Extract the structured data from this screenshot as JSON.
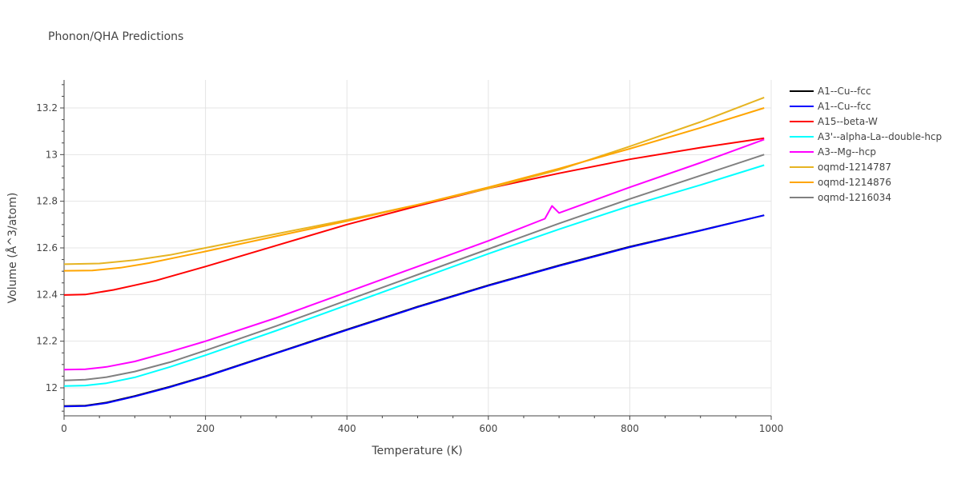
{
  "chart_data": {
    "type": "line",
    "title": "Phonon/QHA Predictions",
    "xlabel": "Temperature (K)",
    "ylabel": "Volume (Å^3/atom)",
    "xlim": [
      0,
      1000
    ],
    "ylim": [
      11.88,
      13.32
    ],
    "x_ticks": [
      0,
      200,
      400,
      600,
      800,
      1000
    ],
    "x_tick_labels": [
      "0",
      "200",
      "400",
      "600",
      "800",
      "1000"
    ],
    "y_ticks": [
      12.0,
      12.2,
      12.4,
      12.6,
      12.8,
      13.0,
      13.2
    ],
    "y_tick_labels": [
      "12",
      "12.2",
      "12.4",
      "12.6",
      "12.8",
      "13",
      "13.2"
    ],
    "grid": true,
    "legend_position": "right",
    "series": [
      {
        "name": "A1--Cu--fcc",
        "color": "#000000",
        "x": [
          0,
          30,
          60,
          100,
          150,
          200,
          300,
          400,
          500,
          600,
          700,
          800,
          900,
          990
        ],
        "y": [
          11.922,
          11.924,
          11.937,
          11.965,
          12.005,
          12.05,
          12.15,
          12.25,
          12.348,
          12.44,
          12.525,
          12.605,
          12.675,
          12.74
        ]
      },
      {
        "name": "A1--Cu--fcc",
        "color": "#0000ff",
        "x": [
          0,
          30,
          60,
          100,
          150,
          200,
          300,
          400,
          500,
          600,
          700,
          800,
          900,
          990
        ],
        "y": [
          11.92,
          11.922,
          11.935,
          11.963,
          12.003,
          12.048,
          12.148,
          12.248,
          12.346,
          12.438,
          12.523,
          12.603,
          12.674,
          12.74
        ]
      },
      {
        "name": "A15--beta-W",
        "color": "#ff0000",
        "x": [
          0,
          30,
          70,
          100,
          130,
          200,
          300,
          400,
          500,
          600,
          700,
          800,
          900,
          990
        ],
        "y": [
          12.398,
          12.4,
          12.42,
          12.44,
          12.46,
          12.52,
          12.61,
          12.7,
          12.78,
          12.855,
          12.92,
          12.98,
          13.03,
          13.07
        ]
      },
      {
        "name": "A3'--alpha-La--double-hcp",
        "color": "#00ffff",
        "x": [
          0,
          30,
          60,
          100,
          150,
          200,
          300,
          400,
          500,
          600,
          700,
          800,
          900,
          990
        ],
        "y": [
          12.008,
          12.01,
          12.02,
          12.045,
          12.09,
          12.14,
          12.245,
          12.355,
          12.465,
          12.575,
          12.68,
          12.78,
          12.87,
          12.955
        ]
      },
      {
        "name": "A3--Mg--hcp",
        "color": "#ff00ff",
        "x": [
          0,
          30,
          60,
          100,
          150,
          200,
          300,
          400,
          500,
          600,
          680,
          690,
          700,
          800,
          900,
          990
        ],
        "y": [
          12.078,
          12.08,
          12.09,
          12.113,
          12.155,
          12.2,
          12.3,
          12.41,
          12.52,
          12.63,
          12.725,
          12.78,
          12.75,
          12.86,
          12.965,
          13.065
        ]
      },
      {
        "name": "oqmd-1214787",
        "color": "#e6b422",
        "x": [
          0,
          50,
          100,
          150,
          200,
          300,
          400,
          500,
          600,
          700,
          800,
          900,
          990
        ],
        "y": [
          12.53,
          12.533,
          12.548,
          12.57,
          12.6,
          12.66,
          12.72,
          12.785,
          12.855,
          12.935,
          13.035,
          13.14,
          13.245
        ]
      },
      {
        "name": "oqmd-1214876",
        "color": "#ffa500",
        "x": [
          0,
          40,
          80,
          120,
          160,
          200,
          300,
          400,
          500,
          600,
          700,
          800,
          900,
          990
        ],
        "y": [
          12.502,
          12.503,
          12.515,
          12.535,
          12.56,
          12.585,
          12.65,
          12.715,
          12.785,
          12.86,
          12.94,
          13.025,
          13.115,
          13.2
        ]
      },
      {
        "name": "oqmd-1216034",
        "color": "#808080",
        "x": [
          0,
          30,
          60,
          100,
          150,
          200,
          300,
          400,
          500,
          600,
          700,
          800,
          900,
          990
        ],
        "y": [
          12.032,
          12.035,
          12.046,
          12.07,
          12.11,
          12.16,
          12.265,
          12.375,
          12.485,
          12.595,
          12.705,
          12.81,
          12.91,
          13.0
        ]
      }
    ]
  }
}
